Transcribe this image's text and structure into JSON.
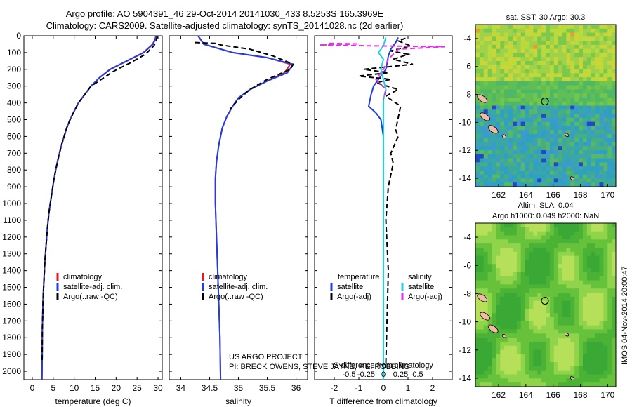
{
  "title_line1": "Argo profile: AO 5904391_46 29-Oct-2014 20141030_433 8.5253S 165.3969E",
  "title_line2": "Climatology: CARS2009. Satellite-adjusted climatology: synTS_20141028.nc (2d earlier)",
  "footer_credit_line1": "US ARGO PROJECT",
  "footer_credit_line2": "PI: BRECK OWENS, STEVE JAYNE, P.E. ROBBINS",
  "timestamp": "IMOS 04-Nov-2014 20:00:47",
  "colors": {
    "climatology": "#e41a1c",
    "satellite": "#1f3fe0",
    "argo": "#000000",
    "sal_satellite": "#19d3e6",
    "sal_argo": "#e62ee6"
  },
  "chart_data": [
    {
      "type": "line",
      "xlabel": "temperature (deg C)",
      "ylabel": "",
      "xlim": [
        -2,
        31
      ],
      "ylim": [
        2050,
        0
      ],
      "x_ticks": [
        0,
        5,
        10,
        15,
        20,
        25,
        30
      ],
      "y_ticks": [
        0,
        100,
        200,
        300,
        400,
        500,
        600,
        700,
        800,
        900,
        1000,
        1100,
        1200,
        1300,
        1400,
        1500,
        1600,
        1700,
        1800,
        1900,
        2000
      ],
      "legend": [
        "climatology",
        "satellite-adj. clim.",
        "Argo(..raw -QC)"
      ],
      "legend_position": "bottom-right",
      "series": [
        {
          "name": "climatology",
          "color": "#e41a1c",
          "style": "solid",
          "x": [
            29.5,
            29.3,
            28.7,
            26.5,
            22.5,
            18.5,
            16.0,
            14.0,
            12.5,
            11.0,
            10.0,
            9.0,
            8.2,
            7.6,
            7.0,
            6.5,
            6.0,
            5.6,
            5.2,
            4.6,
            4.0,
            3.6,
            3.3,
            3.0,
            2.8,
            2.6,
            2.4,
            2.35,
            2.3
          ],
          "y": [
            0,
            20,
            50,
            100,
            150,
            200,
            250,
            300,
            350,
            400,
            450,
            500,
            550,
            600,
            650,
            700,
            750,
            800,
            850,
            950,
            1050,
            1150,
            1250,
            1350,
            1450,
            1550,
            1750,
            1950,
            2050
          ]
        },
        {
          "name": "satellite-adj. clim.",
          "color": "#1f3fe0",
          "style": "solid",
          "x": [
            29.6,
            29.4,
            28.8,
            26.6,
            22.6,
            18.6,
            16.0,
            14.0,
            12.5,
            11.0,
            10.0,
            9.0,
            8.2,
            7.6,
            7.0,
            6.5,
            6.0,
            5.6,
            5.2,
            4.6,
            4.0,
            3.6,
            3.3,
            3.0,
            2.8,
            2.6,
            2.4,
            2.35,
            2.3
          ],
          "y": [
            0,
            20,
            50,
            100,
            150,
            200,
            250,
            300,
            350,
            400,
            450,
            500,
            550,
            600,
            650,
            700,
            750,
            800,
            850,
            950,
            1050,
            1150,
            1250,
            1350,
            1450,
            1550,
            1750,
            1950,
            2050
          ]
        },
        {
          "name": "Argo(..raw -QC)",
          "color": "#000000",
          "style": "dashed",
          "x": [
            29.8,
            29.6,
            29.0,
            27.0,
            23.5,
            19.5,
            16.5,
            14.0,
            12.5,
            11.0,
            10.0,
            9.0,
            8.2,
            7.6,
            7.0,
            6.5,
            6.0,
            5.6,
            5.2,
            4.6,
            4.0,
            3.6,
            3.3,
            3.0,
            2.8,
            2.6,
            2.4,
            2.35
          ],
          "y": [
            5,
            30,
            60,
            110,
            160,
            210,
            260,
            300,
            350,
            400,
            450,
            500,
            550,
            600,
            650,
            700,
            750,
            800,
            850,
            950,
            1050,
            1150,
            1250,
            1350,
            1450,
            1550,
            1750,
            1950
          ]
        }
      ]
    },
    {
      "type": "line",
      "xlabel": "salinity",
      "xlim": [
        33.8,
        36.2
      ],
      "ylim": [
        2050,
        0
      ],
      "x_ticks": [
        34,
        34.5,
        35,
        35.5,
        36
      ],
      "legend": [
        "climatology",
        "satellite-adj. clim.",
        "Argo(..raw -QC)"
      ],
      "legend_position": "bottom-right",
      "series": [
        {
          "name": "climatology",
          "color": "#e41a1c",
          "style": "solid",
          "x": [
            34.3,
            34.4,
            34.9,
            35.5,
            35.9,
            35.8,
            35.5,
            35.2,
            35.0,
            34.9,
            34.8,
            34.72,
            34.66,
            34.62,
            34.6,
            34.6,
            34.62,
            34.64,
            34.66,
            34.68,
            34.69
          ],
          "y": [
            0,
            50,
            100,
            130,
            170,
            220,
            270,
            320,
            370,
            420,
            480,
            550,
            650,
            750,
            850,
            1000,
            1200,
            1400,
            1600,
            1800,
            2050
          ]
        },
        {
          "name": "satellite-adj. clim.",
          "color": "#1f3fe0",
          "style": "solid",
          "x": [
            34.3,
            34.4,
            34.9,
            35.5,
            35.95,
            35.85,
            35.5,
            35.2,
            35.0,
            34.9,
            34.8,
            34.72,
            34.66,
            34.62,
            34.6,
            34.6,
            34.62,
            34.64,
            34.66,
            34.68,
            34.69
          ],
          "y": [
            0,
            50,
            100,
            130,
            170,
            220,
            270,
            320,
            370,
            420,
            480,
            550,
            650,
            750,
            850,
            1000,
            1200,
            1400,
            1600,
            1800,
            2050
          ]
        },
        {
          "name": "Argo(..raw -QC)",
          "color": "#000000",
          "style": "dashed",
          "x": [
            34.25,
            34.6,
            34.7,
            35.2,
            35.6,
            35.95,
            35.9,
            35.5,
            35.2,
            35.0,
            34.85
          ],
          "y": [
            40,
            45,
            55,
            80,
            120,
            170,
            200,
            260,
            320,
            380,
            440
          ]
        }
      ]
    },
    {
      "type": "line",
      "xlabel": "T difference from climatology",
      "xlabel_secondary": "S difference from climatology",
      "xlim": [
        -2.8,
        2.8
      ],
      "ylim": [
        2050,
        0
      ],
      "x_ticks": [
        -2,
        -1,
        0,
        1,
        2
      ],
      "x_ticks_secondary": [
        "-0.5",
        "-0.25",
        "0",
        "0.25",
        "0.5"
      ],
      "legend_temperature": [
        "temperature",
        "satellite",
        "Argo(-adj)"
      ],
      "legend_salinity": [
        "salinity",
        "satellite",
        "Argo(-adj)"
      ],
      "legend_position": "bottom",
      "series": [
        {
          "name": "satellite",
          "color": "#1f3fe0",
          "style": "solid",
          "x": [
            0.6,
            0.5,
            0.3,
            0.2,
            0.15,
            0.1,
            -0.1,
            -0.2,
            -0.4,
            -0.5,
            -0.6,
            -0.3,
            -0.1,
            0.0,
            0.0,
            0.0
          ],
          "y": [
            10,
            40,
            80,
            120,
            160,
            200,
            240,
            260,
            300,
            350,
            420,
            460,
            500,
            600,
            1200,
            2050
          ]
        },
        {
          "name": "Argo(-adj)",
          "color": "#000000",
          "style": "dashed",
          "x": [
            0.9,
            0.6,
            1.1,
            0.3,
            1.0,
            0.4,
            1.2,
            -0.8,
            0.2,
            -1.0,
            0.3,
            -0.3,
            0.6,
            0.1,
            0.7,
            0.5,
            0.6,
            0.3,
            0.4,
            0.2,
            0.1,
            0.2,
            0.1
          ],
          "y": [
            15,
            30,
            60,
            90,
            110,
            140,
            170,
            200,
            220,
            240,
            260,
            280,
            320,
            360,
            420,
            560,
            600,
            700,
            760,
            900,
            1100,
            1400,
            1950
          ]
        },
        {
          "name": "salinity satellite",
          "color": "#19d3e6",
          "style": "solid",
          "x": [
            0.1,
            0.0,
            -0.2,
            0.0,
            -0.1,
            0.0,
            0.1,
            0.0,
            0.0,
            0.0,
            0.0
          ],
          "y": [
            10,
            60,
            100,
            140,
            200,
            260,
            320,
            380,
            600,
            1200,
            2050
          ]
        },
        {
          "name": "salinity Argo(-adj)",
          "color": "#e62ee6",
          "style": "dashed",
          "x": [
            -2.2,
            -1.0,
            -2.6,
            -0.5,
            2.5,
            0.6,
            0.2,
            0.0,
            -0.3,
            0.1,
            0.0
          ],
          "y": [
            45,
            48,
            55,
            60,
            65,
            80,
            140,
            200,
            260,
            320,
            380
          ]
        }
      ]
    },
    {
      "type": "heatmap",
      "title": "sat. SST: 30 Argo: 30.3",
      "xlim": [
        160.3,
        170.6
      ],
      "ylim": [
        -14.6,
        -3
      ],
      "x_ticks": [
        162,
        164,
        166,
        168,
        170
      ],
      "y_ticks": [
        -4,
        -6,
        -8,
        -10,
        -12,
        -14
      ],
      "marker": {
        "x": 165.4,
        "y": -8.5
      }
    },
    {
      "type": "heatmap",
      "title": "Altim. SLA: 0.04",
      "subtitle": "Argo h1000: 0.049 h2000: NaN",
      "xlim": [
        160.3,
        170.6
      ],
      "ylim": [
        -14.6,
        -3
      ],
      "x_ticks": [
        162,
        164,
        166,
        168,
        170
      ],
      "y_ticks": [
        -4,
        -6,
        -8,
        -10,
        -12,
        -14
      ],
      "marker": {
        "x": 165.4,
        "y": -8.5
      }
    }
  ]
}
